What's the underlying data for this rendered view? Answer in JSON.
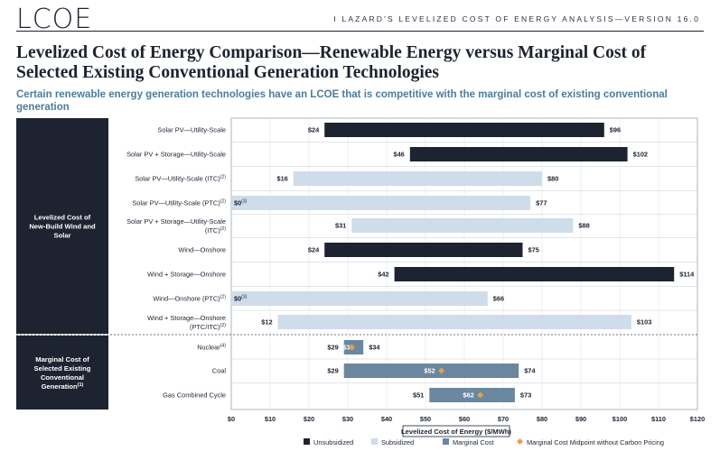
{
  "header": {
    "logo": "LCOE",
    "report": "I   LAZARD'S LEVELIZED COST OF ENERGY ANALYSIS—VERSION 16.0"
  },
  "title": "Levelized Cost of Energy Comparison—Renewable Energy versus Marginal Cost of Selected Existing Conventional Generation Technologies",
  "subtitle": "Certain renewable energy generation technologies have an LCOE that is competitive with the marginal cost of existing conventional generation",
  "colors": {
    "unsubsidized": "#1d2330",
    "subsidized": "#cfdcea",
    "marginal": "#6b879f",
    "midpoint": "#e0a24a"
  },
  "chart_data": {
    "type": "bar",
    "orientation": "horizontal",
    "xlabel": "Levelized Cost of Energy ($/MWh)",
    "xlim": [
      0,
      120
    ],
    "xticks": [
      "$0",
      "$10",
      "$20",
      "$30",
      "$40",
      "$50",
      "$60",
      "$70",
      "$80",
      "$90",
      "$100",
      "$110",
      "$120"
    ],
    "legend": [
      {
        "key": "unsubsidized",
        "label": "Unsubsidized",
        "shape": "square"
      },
      {
        "key": "subsidized",
        "label": "Subsidized",
        "shape": "square"
      },
      {
        "key": "marginal",
        "label": "Marginal Cost",
        "shape": "square"
      },
      {
        "key": "midpoint",
        "label": "Marginal Cost Midpoint without Carbon Pricing",
        "shape": "diamond"
      }
    ],
    "groups": [
      {
        "label": "Levelized Cost of New-Build Wind and Solar",
        "rows": [
          0,
          8
        ]
      },
      {
        "label": "Marginal Cost of Selected Existing Conventional Generation",
        "rows": [
          9,
          11
        ]
      }
    ],
    "rows": [
      {
        "label": "Solar PV—Utility-Scale",
        "kind": "unsubsidized",
        "low": 24,
        "high": 96,
        "low_label": "$24",
        "high_label": "$96"
      },
      {
        "label": "Solar PV + Storage—Utility-Scale",
        "kind": "unsubsidized",
        "low": 46,
        "high": 102,
        "low_label": "$46",
        "high_label": "$102"
      },
      {
        "label": "Solar PV—Utility-Scale (ITC)",
        "label_note": "(2)",
        "kind": "subsidized",
        "low": 16,
        "high": 80,
        "low_label": "$16",
        "high_label": "$80"
      },
      {
        "label": "Solar PV—Utility-Scale (PTC)",
        "label_note": "(2)",
        "kind": "subsidized",
        "low": 0,
        "high": 77,
        "low_label": "$0",
        "low_note": "(3)",
        "high_label": "$77"
      },
      {
        "label": "Solar PV + Storage—Utility-Scale",
        "label2": "(ITC)",
        "label_note": "(2)",
        "kind": "subsidized",
        "low": 31,
        "high": 88,
        "low_label": "$31",
        "high_label": "$88"
      },
      {
        "label": "Wind—Onshore",
        "kind": "unsubsidized",
        "low": 24,
        "high": 75,
        "low_label": "$24",
        "high_label": "$75"
      },
      {
        "label": "Wind + Storage—Onshore",
        "kind": "unsubsidized",
        "low": 42,
        "high": 114,
        "low_label": "$42",
        "high_label": "$114"
      },
      {
        "label": "Wind—Onshore (PTC)",
        "label_note": "(2)",
        "kind": "subsidized",
        "low": 0,
        "high": 66,
        "low_label": "$0",
        "low_note": "(3)",
        "high_label": "$66"
      },
      {
        "label": "Wind + Storage—Onshore",
        "label2": "(PTC/ITC)",
        "label_note": "(2)",
        "kind": "subsidized",
        "low": 12,
        "high": 103,
        "low_label": "$12",
        "high_label": "$103"
      },
      {
        "label": "Nuclear",
        "label_note": "(4)",
        "kind": "marginal",
        "low": 29,
        "high": 34,
        "mid": 31,
        "low_label": "$29",
        "high_label": "$34",
        "mid_label": "$31"
      },
      {
        "label": "Coal",
        "kind": "marginal",
        "low": 29,
        "high": 74,
        "mid": 52,
        "low_label": "$29",
        "high_label": "$74",
        "mid_label": "$52"
      },
      {
        "label": "Gas Combined Cycle",
        "kind": "marginal",
        "low": 51,
        "high": 73,
        "mid": 62,
        "low_label": "$51",
        "high_label": "$73",
        "mid_label": "$62"
      }
    ]
  }
}
